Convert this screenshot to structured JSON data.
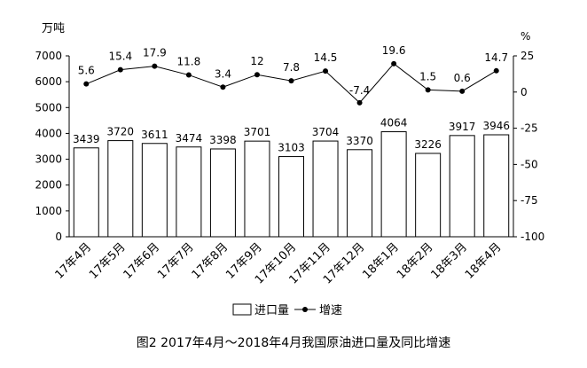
{
  "chart_data": {
    "type": "bar+line",
    "title": "图2 2017年4月～2018年4月我国原油进口量及同比增速",
    "categories": [
      "17年4月",
      "17年5月",
      "17年6月",
      "17年7月",
      "17年8月",
      "17年9月",
      "17年10月",
      "17年11月",
      "17年12月",
      "18年1月",
      "18年2月",
      "18年3月",
      "18年4月"
    ],
    "series": [
      {
        "name": "进口量",
        "type": "bar",
        "axis": "left",
        "values": [
          3439,
          3720,
          3611,
          3474,
          3398,
          3701,
          3103,
          3704,
          3370,
          4064,
          3226,
          3917,
          3946
        ]
      },
      {
        "name": "增速",
        "type": "line",
        "axis": "right",
        "values": [
          5.6,
          15.4,
          17.9,
          11.8,
          3.4,
          12,
          7.8,
          14.5,
          -7.4,
          19.6,
          1.5,
          0.6,
          14.7
        ]
      }
    ],
    "left_axis": {
      "unit": "万吨",
      "ylim": [
        0,
        7000
      ],
      "ticks": [
        0,
        1000,
        2000,
        3000,
        4000,
        5000,
        6000,
        7000
      ]
    },
    "right_axis": {
      "unit": "%",
      "ylim": [
        -100,
        25
      ],
      "ticks": [
        25,
        0,
        -25,
        -50,
        -75,
        -100
      ]
    },
    "grid": false,
    "legend": "bottom",
    "colors": {
      "bar_fill": "#ffffff",
      "bar_stroke": "#000000",
      "line": "#000000"
    }
  }
}
